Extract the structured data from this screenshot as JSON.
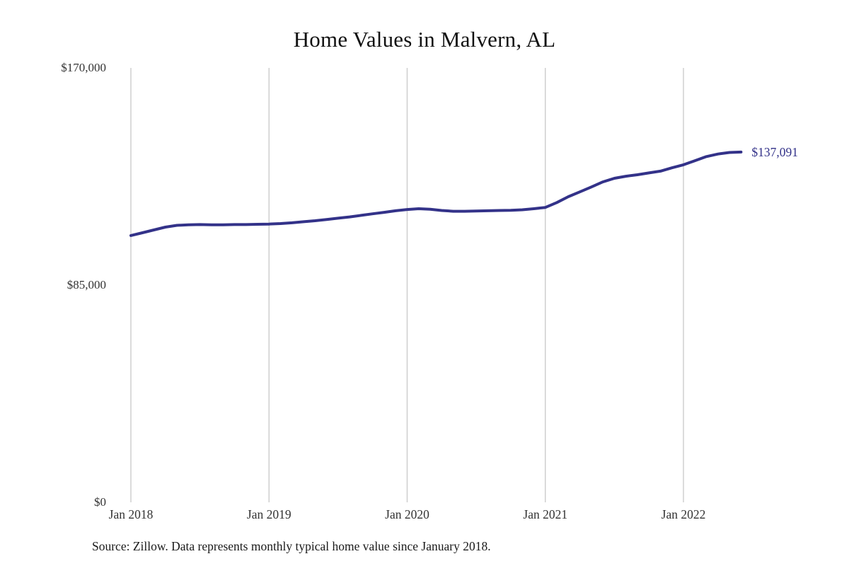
{
  "chart_data": {
    "type": "line",
    "title": "Home Values in Malvern, AL",
    "series_name": "Monthly typical home value",
    "x": [
      "2018-01",
      "2018-02",
      "2018-03",
      "2018-04",
      "2018-05",
      "2018-06",
      "2018-07",
      "2018-08",
      "2018-09",
      "2018-10",
      "2018-11",
      "2018-12",
      "2019-01",
      "2019-02",
      "2019-03",
      "2019-04",
      "2019-05",
      "2019-06",
      "2019-07",
      "2019-08",
      "2019-09",
      "2019-10",
      "2019-11",
      "2019-12",
      "2020-01",
      "2020-02",
      "2020-03",
      "2020-04",
      "2020-05",
      "2020-06",
      "2020-07",
      "2020-08",
      "2020-09",
      "2020-10",
      "2020-11",
      "2020-12",
      "2021-01",
      "2021-02",
      "2021-03",
      "2021-04",
      "2021-05",
      "2021-06",
      "2021-07",
      "2021-08",
      "2021-09",
      "2021-10",
      "2021-11",
      "2021-12",
      "2022-01",
      "2022-02",
      "2022-03",
      "2022-04",
      "2022-05",
      "2022-06"
    ],
    "values": [
      104400,
      105500,
      106600,
      107700,
      108400,
      108600,
      108700,
      108600,
      108600,
      108700,
      108700,
      108800,
      108900,
      109100,
      109400,
      109800,
      110200,
      110700,
      111200,
      111700,
      112300,
      112900,
      113500,
      114100,
      114600,
      114900,
      114700,
      114200,
      113900,
      113900,
      114000,
      114100,
      114200,
      114300,
      114500,
      114900,
      115400,
      117300,
      119600,
      121500,
      123400,
      125400,
      126800,
      127600,
      128200,
      128900,
      129600,
      130900,
      132100,
      133700,
      135300,
      136300,
      136900,
      137091
    ],
    "x_tick_labels": [
      "Jan 2018",
      "Jan 2019",
      "Jan 2020",
      "Jan 2021",
      "Jan 2022"
    ],
    "x_tick_months": [
      0,
      12,
      24,
      36,
      48
    ],
    "y_ticks": [
      {
        "label": "$0",
        "value": 0
      },
      {
        "label": "$85,000",
        "value": 85000
      },
      {
        "label": "$170,000",
        "value": 170000
      }
    ],
    "ylim": [
      0,
      170000
    ],
    "end_label": "$137,091",
    "line_color": "#333289",
    "grid_color": "#cccccc",
    "tick_label_color": "#333333",
    "grid": "vertical-only",
    "legend": "none",
    "source_note": "Source: Zillow. Data represents monthly typical home value since January 2018."
  }
}
